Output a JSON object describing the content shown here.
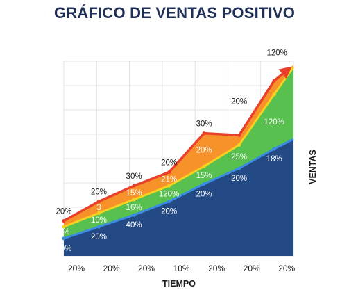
{
  "title": "GRÁFICO DE VENTAS POSITIVO",
  "colors": {
    "blue": "#244a85",
    "blue_line": "#3a8de0",
    "green": "#58c04f",
    "yellow_line": "#f5d21f",
    "orange": "#f7922a",
    "red_line": "#e8402a",
    "grid": "#e3e3e3"
  },
  "chart_data": {
    "type": "area",
    "title": "GRÁFICO DE VENTAS POSITIVO",
    "xlabel": "TIEMPO",
    "ylabel": "VENTAS",
    "x_ticks": [
      "20%",
      "20%",
      "20%",
      "10%",
      "20%",
      "20%",
      "20%"
    ],
    "ylim": [
      0,
      100
    ],
    "grid": true,
    "legend": "none",
    "series": [
      {
        "color": "#244a85",
        "x": [
          0,
          1,
          2,
          3,
          4,
          5,
          6,
          6.55
        ],
        "values": [
          9,
          15,
          21,
          28,
          37,
          45,
          55,
          60
        ],
        "labels": [
          "10%",
          "20%",
          "40%",
          "20%",
          "20%",
          "20%",
          "18%"
        ]
      },
      {
        "color": "#58c04f",
        "x": [
          0,
          1,
          2,
          3,
          4,
          5,
          6,
          6.55
        ],
        "values": [
          15,
          22,
          29,
          36,
          46,
          57,
          83,
          97
        ],
        "labels": [
          "2%",
          "10%",
          "16%",
          "120%",
          "15%",
          "25%",
          "120%"
        ]
      },
      {
        "color": "#f7922a",
        "x": [
          0,
          1,
          2,
          3,
          4,
          5,
          6,
          6.55
        ],
        "values": [
          18,
          28,
          36,
          43,
          63,
          62,
          90,
          98
        ],
        "labels": [
          "20%",
          "20%",
          "30%",
          "20%",
          "30%",
          "20%",
          "120%"
        ],
        "inner_labels": [
          "",
          "3",
          "15%",
          "21%",
          "20%",
          "",
          ""
        ]
      }
    ]
  }
}
